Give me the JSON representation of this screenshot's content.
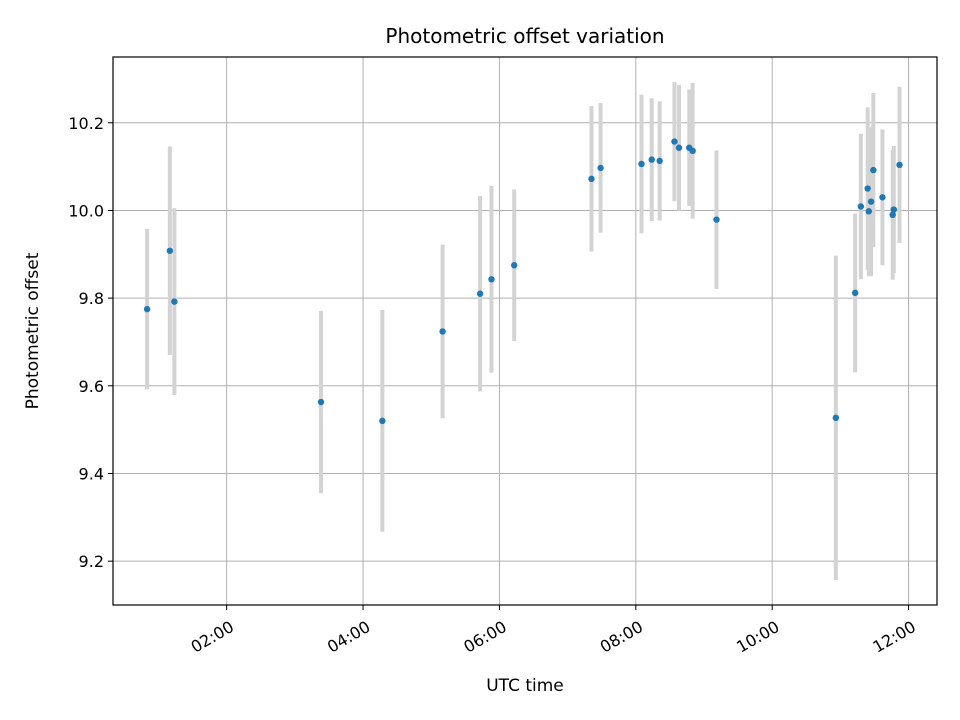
{
  "chart_data": {
    "type": "scatter",
    "title": "Photometric offset variation",
    "xlabel": "UTC time",
    "ylabel": "Photometric offset",
    "x_ticks": [
      "02:00",
      "04:00",
      "06:00",
      "08:00",
      "10:00",
      "12:00"
    ],
    "y_ticks": [
      "9.2",
      "9.4",
      "9.6",
      "9.8",
      "10.0",
      "10.2"
    ],
    "xlim": [
      "00:20",
      "12:25"
    ],
    "ylim": [
      9.1,
      10.35
    ],
    "grid": true,
    "colors": {
      "point": "#1f77b4",
      "errorbar": "#d3d3d3",
      "grid": "#b0b0b0"
    },
    "points": [
      {
        "x": "00:50",
        "y": 9.775,
        "err": 0.183
      },
      {
        "x": "01:10",
        "y": 9.908,
        "err": 0.238
      },
      {
        "x": "01:14",
        "y": 9.792,
        "err": 0.213
      },
      {
        "x": "03:23",
        "y": 9.563,
        "err": 0.208
      },
      {
        "x": "04:17",
        "y": 9.52,
        "err": 0.253
      },
      {
        "x": "05:10",
        "y": 9.724,
        "err": 0.198
      },
      {
        "x": "05:43",
        "y": 9.81,
        "err": 0.223
      },
      {
        "x": "05:53",
        "y": 9.843,
        "err": 0.213
      },
      {
        "x": "06:13",
        "y": 9.875,
        "err": 0.173
      },
      {
        "x": "07:21",
        "y": 10.072,
        "err": 0.166
      },
      {
        "x": "07:29",
        "y": 10.097,
        "err": 0.148
      },
      {
        "x": "08:05",
        "y": 10.106,
        "err": 0.158
      },
      {
        "x": "08:14",
        "y": 10.116,
        "err": 0.14
      },
      {
        "x": "08:21",
        "y": 10.113,
        "err": 0.136
      },
      {
        "x": "08:34",
        "y": 10.157,
        "err": 0.136
      },
      {
        "x": "08:38",
        "y": 10.143,
        "err": 0.143
      },
      {
        "x": "08:47",
        "y": 10.143,
        "err": 0.133
      },
      {
        "x": "08:50",
        "y": 10.136,
        "err": 0.155
      },
      {
        "x": "09:11",
        "y": 9.979,
        "err": 0.158
      },
      {
        "x": "10:56",
        "y": 9.527,
        "err": 0.37
      },
      {
        "x": "11:13",
        "y": 9.812,
        "err": 0.181
      },
      {
        "x": "11:18",
        "y": 10.009,
        "err": 0.166
      },
      {
        "x": "11:24",
        "y": 10.05,
        "err": 0.185
      },
      {
        "x": "11:25",
        "y": 9.998,
        "err": 0.148
      },
      {
        "x": "11:27",
        "y": 10.02,
        "err": 0.17
      },
      {
        "x": "11:29",
        "y": 10.092,
        "err": 0.176
      },
      {
        "x": "11:37",
        "y": 10.03,
        "err": 0.155
      },
      {
        "x": "11:46",
        "y": 9.99,
        "err": 0.148
      },
      {
        "x": "11:47",
        "y": 10.002,
        "err": 0.145
      },
      {
        "x": "11:52",
        "y": 10.104,
        "err": 0.178
      }
    ]
  }
}
